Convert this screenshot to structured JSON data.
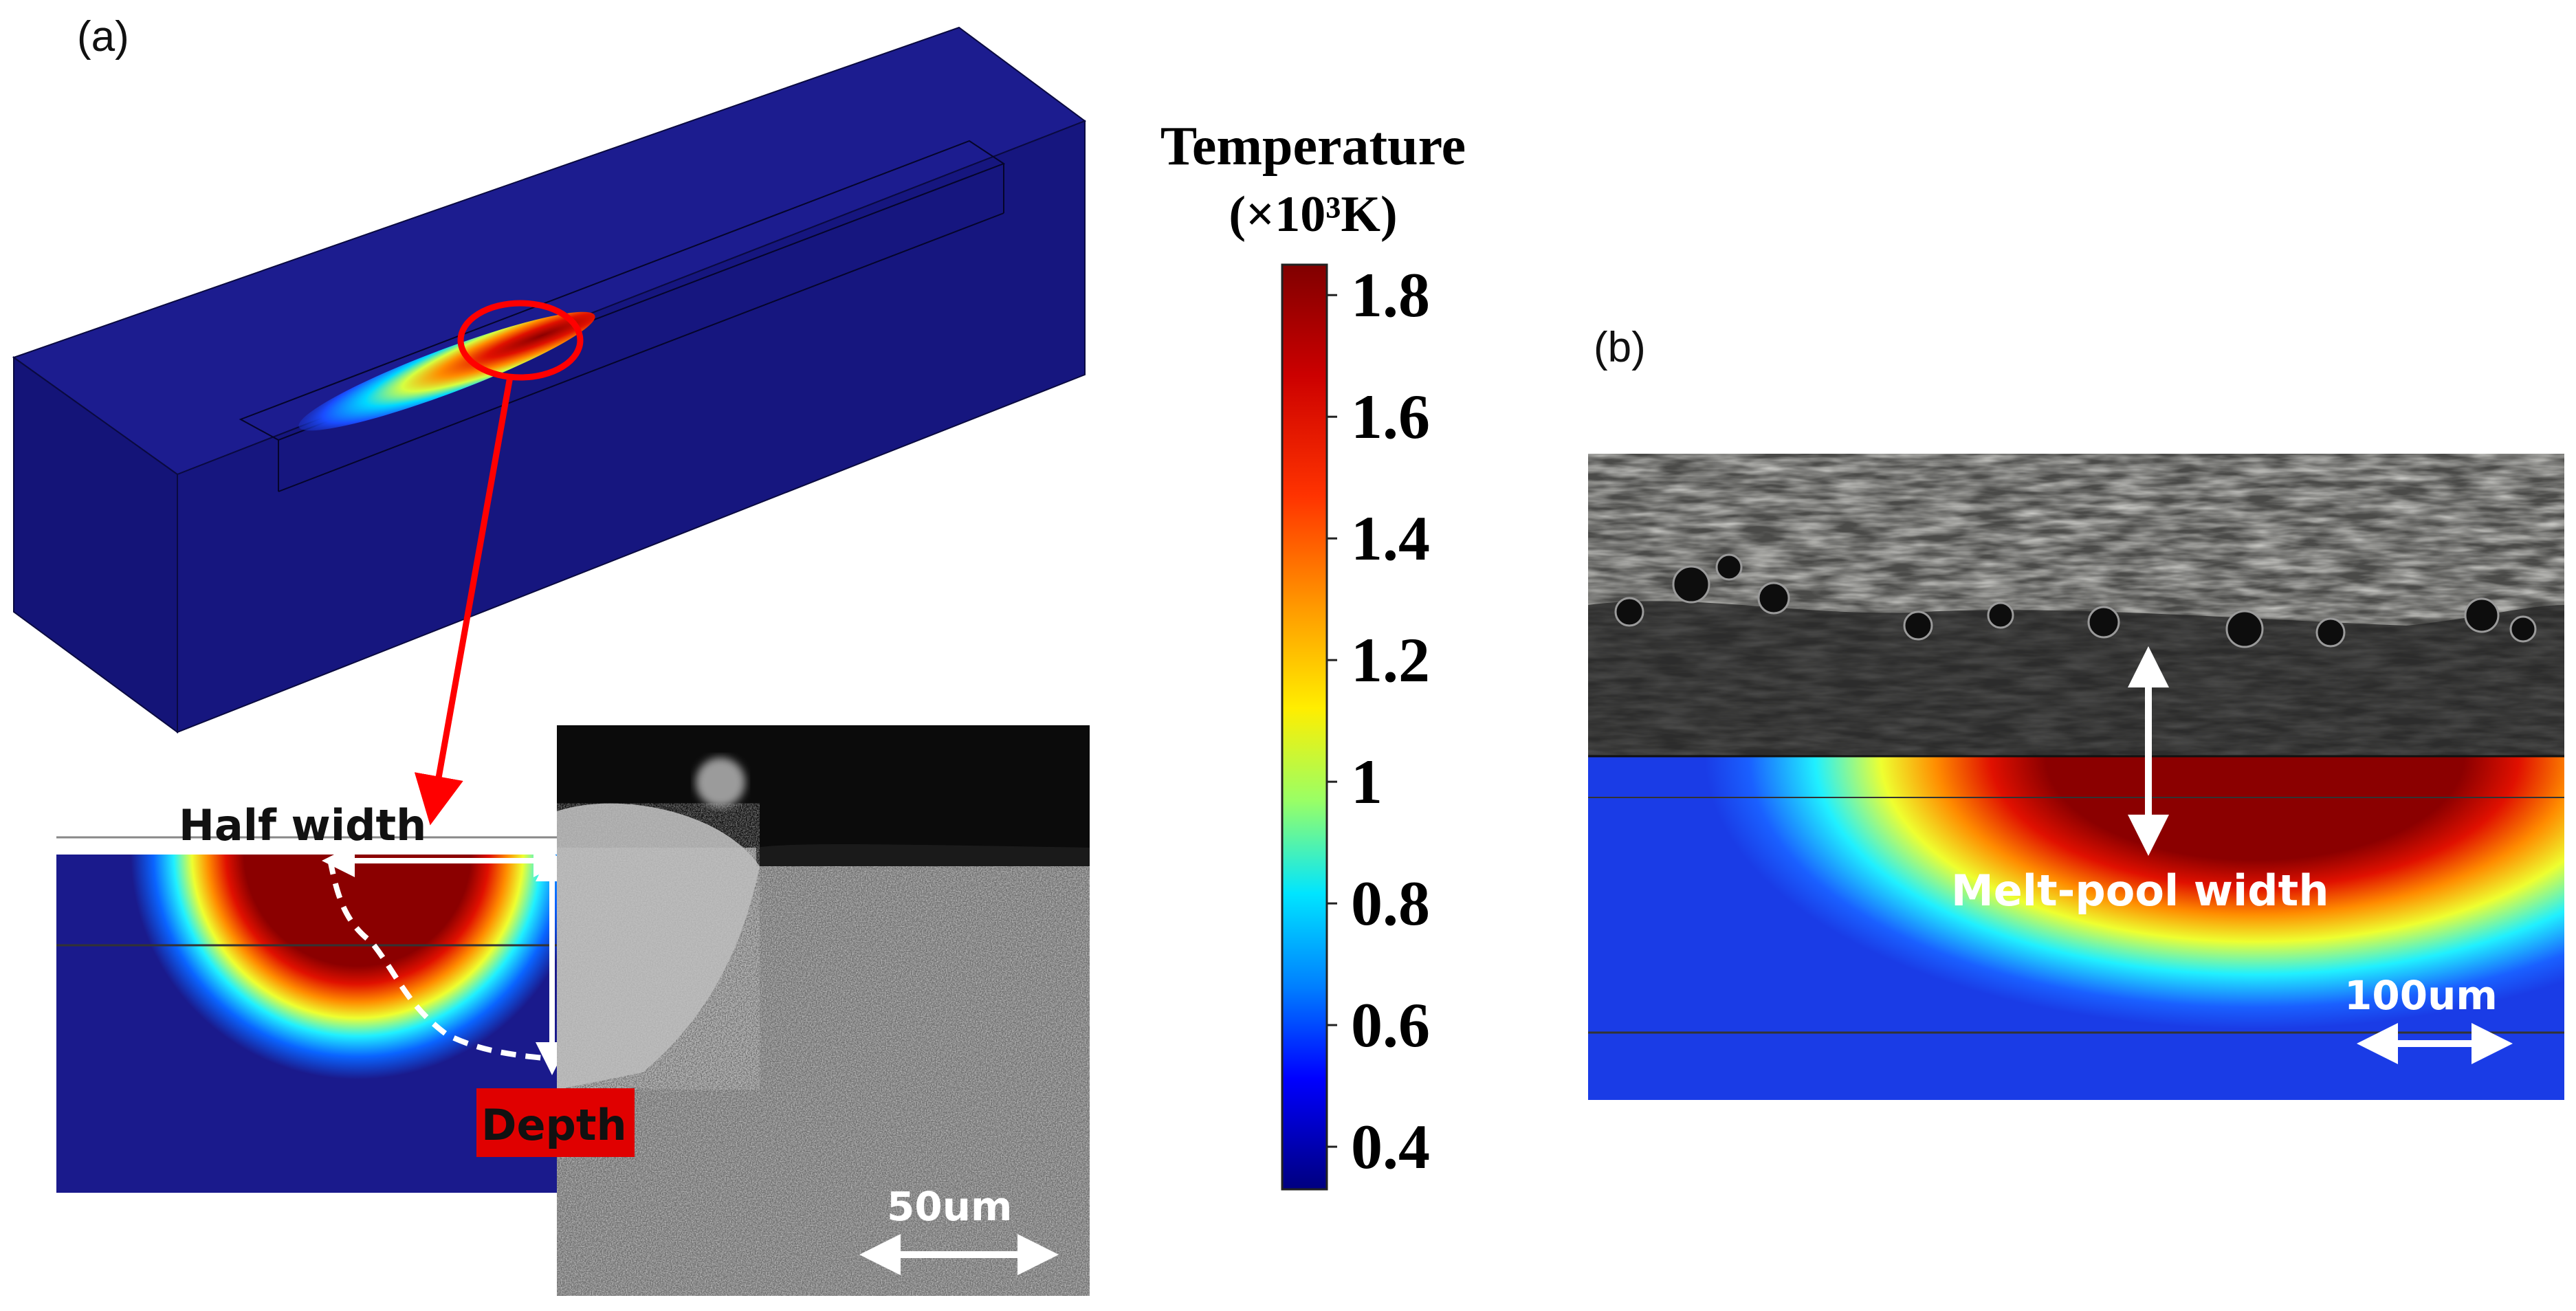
{
  "panels": {
    "a": {
      "label": "(a)"
    },
    "b": {
      "label": "(b)"
    }
  },
  "colorbar": {
    "title": "Temperature",
    "unit": "(×10³K)",
    "ticks": [
      "1.8",
      "1.6",
      "1.4",
      "1.2",
      "1",
      "0.8",
      "0.6",
      "0.4"
    ],
    "tick_values": [
      1.8,
      1.6,
      1.4,
      1.2,
      1.0,
      0.8,
      0.6,
      0.4
    ],
    "range": [
      0.33,
      1.85
    ],
    "colormap": "jet"
  },
  "annotations": {
    "half_width": "Half width",
    "depth": "Depth",
    "scale_a": "50um",
    "melt_pool_width": "Melt-pool width",
    "scale_b": "100um"
  },
  "colors": {
    "substrate_blue": "#1a1a8c",
    "hot_red": "#8b0000",
    "highlight_red": "#ff0000",
    "depth_box": "#e00000",
    "sim_blue_b": "#1a3ce6"
  }
}
